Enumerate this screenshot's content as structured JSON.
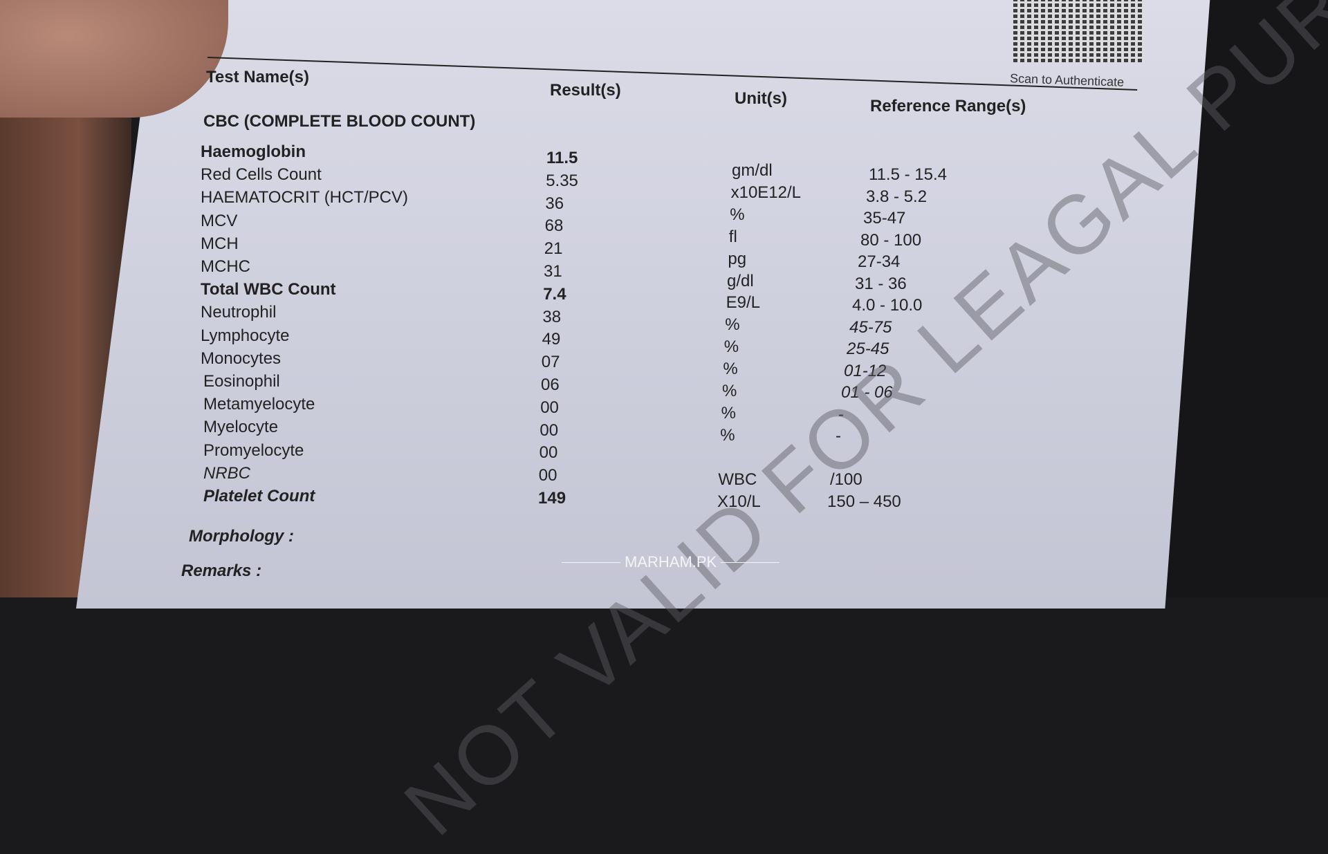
{
  "header": {
    "test_name": "Test Name(s)",
    "result": "Result(s)",
    "unit": "Unit(s)",
    "reference": "Reference Range(s)",
    "qr_caption": "Scan to Authenticate"
  },
  "section_title": "CBC (COMPLETE BLOOD COUNT)",
  "rows": [
    {
      "name": "Haemoglobin",
      "result": "11.5",
      "unit": "gm/dl",
      "range": "11.5 - 15.4",
      "bold": true
    },
    {
      "name": "Red Cells Count",
      "result": "5.35",
      "unit": "x10E12/L",
      "range": "3.8 - 5.2"
    },
    {
      "name": "HAEMATOCRIT (HCT/PCV)",
      "result": "36",
      "unit": "%",
      "range": "35-47"
    },
    {
      "name": "MCV",
      "result": "68",
      "unit": "fl",
      "range": "80 - 100"
    },
    {
      "name": "MCH",
      "result": "21",
      "unit": "pg",
      "range": "27-34"
    },
    {
      "name": "MCHC",
      "result": "31",
      "unit": "g/dl",
      "range": "31 - 36"
    },
    {
      "name": "Total WBC Count",
      "result": "7.4",
      "unit": "E9/L",
      "range": "4.0 - 10.0",
      "bold": true
    },
    {
      "name": "Neutrophil",
      "result": "38",
      "unit": "%",
      "range": "45-75",
      "italic_range": true
    },
    {
      "name": "Lymphocyte",
      "result": "49",
      "unit": "%",
      "range": "25-45",
      "italic_range": true
    },
    {
      "name": "Monocytes",
      "result": "07",
      "unit": "%",
      "range": "01-12",
      "italic_range": true
    },
    {
      "name": "Eosinophil",
      "result": "06",
      "unit": "%",
      "range": "01 - 06",
      "italic_range": true
    },
    {
      "name": "Metamyelocyte",
      "result": "00",
      "unit": "%",
      "range": "-"
    },
    {
      "name": "Myelocyte",
      "result": "00",
      "unit": "%",
      "range": "-"
    },
    {
      "name": "Promyelocyte",
      "result": "00",
      "unit": "",
      "range": ""
    },
    {
      "name": "NRBC",
      "result": "00",
      "unit": "WBC",
      "range": "/100",
      "italic_name": true
    },
    {
      "name": "Platelet Count",
      "result": "149",
      "unit": "X10/L",
      "range": "150 – 450",
      "bold": true,
      "italic_name": true
    }
  ],
  "morphology_label": "Morphology :",
  "remarks_label": "Remarks :",
  "watermark": "NOT VALID FOR LEAGAL PURPOSE",
  "brand": "MARHAM.PK"
}
